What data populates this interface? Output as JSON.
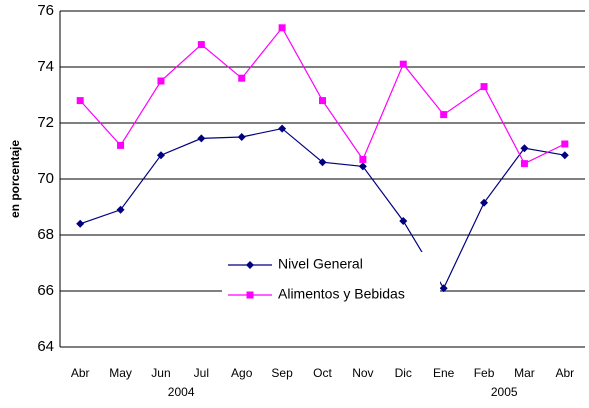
{
  "chart_data": {
    "type": "line",
    "y_label": "en porcentaje",
    "categories": [
      "Abr",
      "May",
      "Jun",
      "Jul",
      "Ago",
      "Sep",
      "Oct",
      "Nov",
      "Dic",
      "Ene",
      "Feb",
      "Mar",
      "Abr"
    ],
    "x_group_labels": [
      "2004",
      "2005"
    ],
    "series": [
      {
        "name": "Nivel General",
        "color": "#000080",
        "marker": "diamond",
        "values": [
          68.4,
          68.9,
          70.85,
          71.45,
          71.5,
          71.8,
          70.6,
          70.45,
          68.5,
          66.1,
          69.15,
          71.1,
          70.85
        ]
      },
      {
        "name": "Alimentos y Bebidas",
        "color": "#ff00ff",
        "marker": "square",
        "values": [
          72.8,
          71.2,
          73.5,
          74.8,
          73.6,
          75.4,
          72.8,
          70.7,
          74.1,
          72.3,
          73.3,
          70.55,
          71.25
        ]
      }
    ],
    "ylim": [
      64,
      76
    ],
    "yticks": [
      64,
      66,
      68,
      70,
      72,
      74,
      76
    ],
    "grid": true
  }
}
